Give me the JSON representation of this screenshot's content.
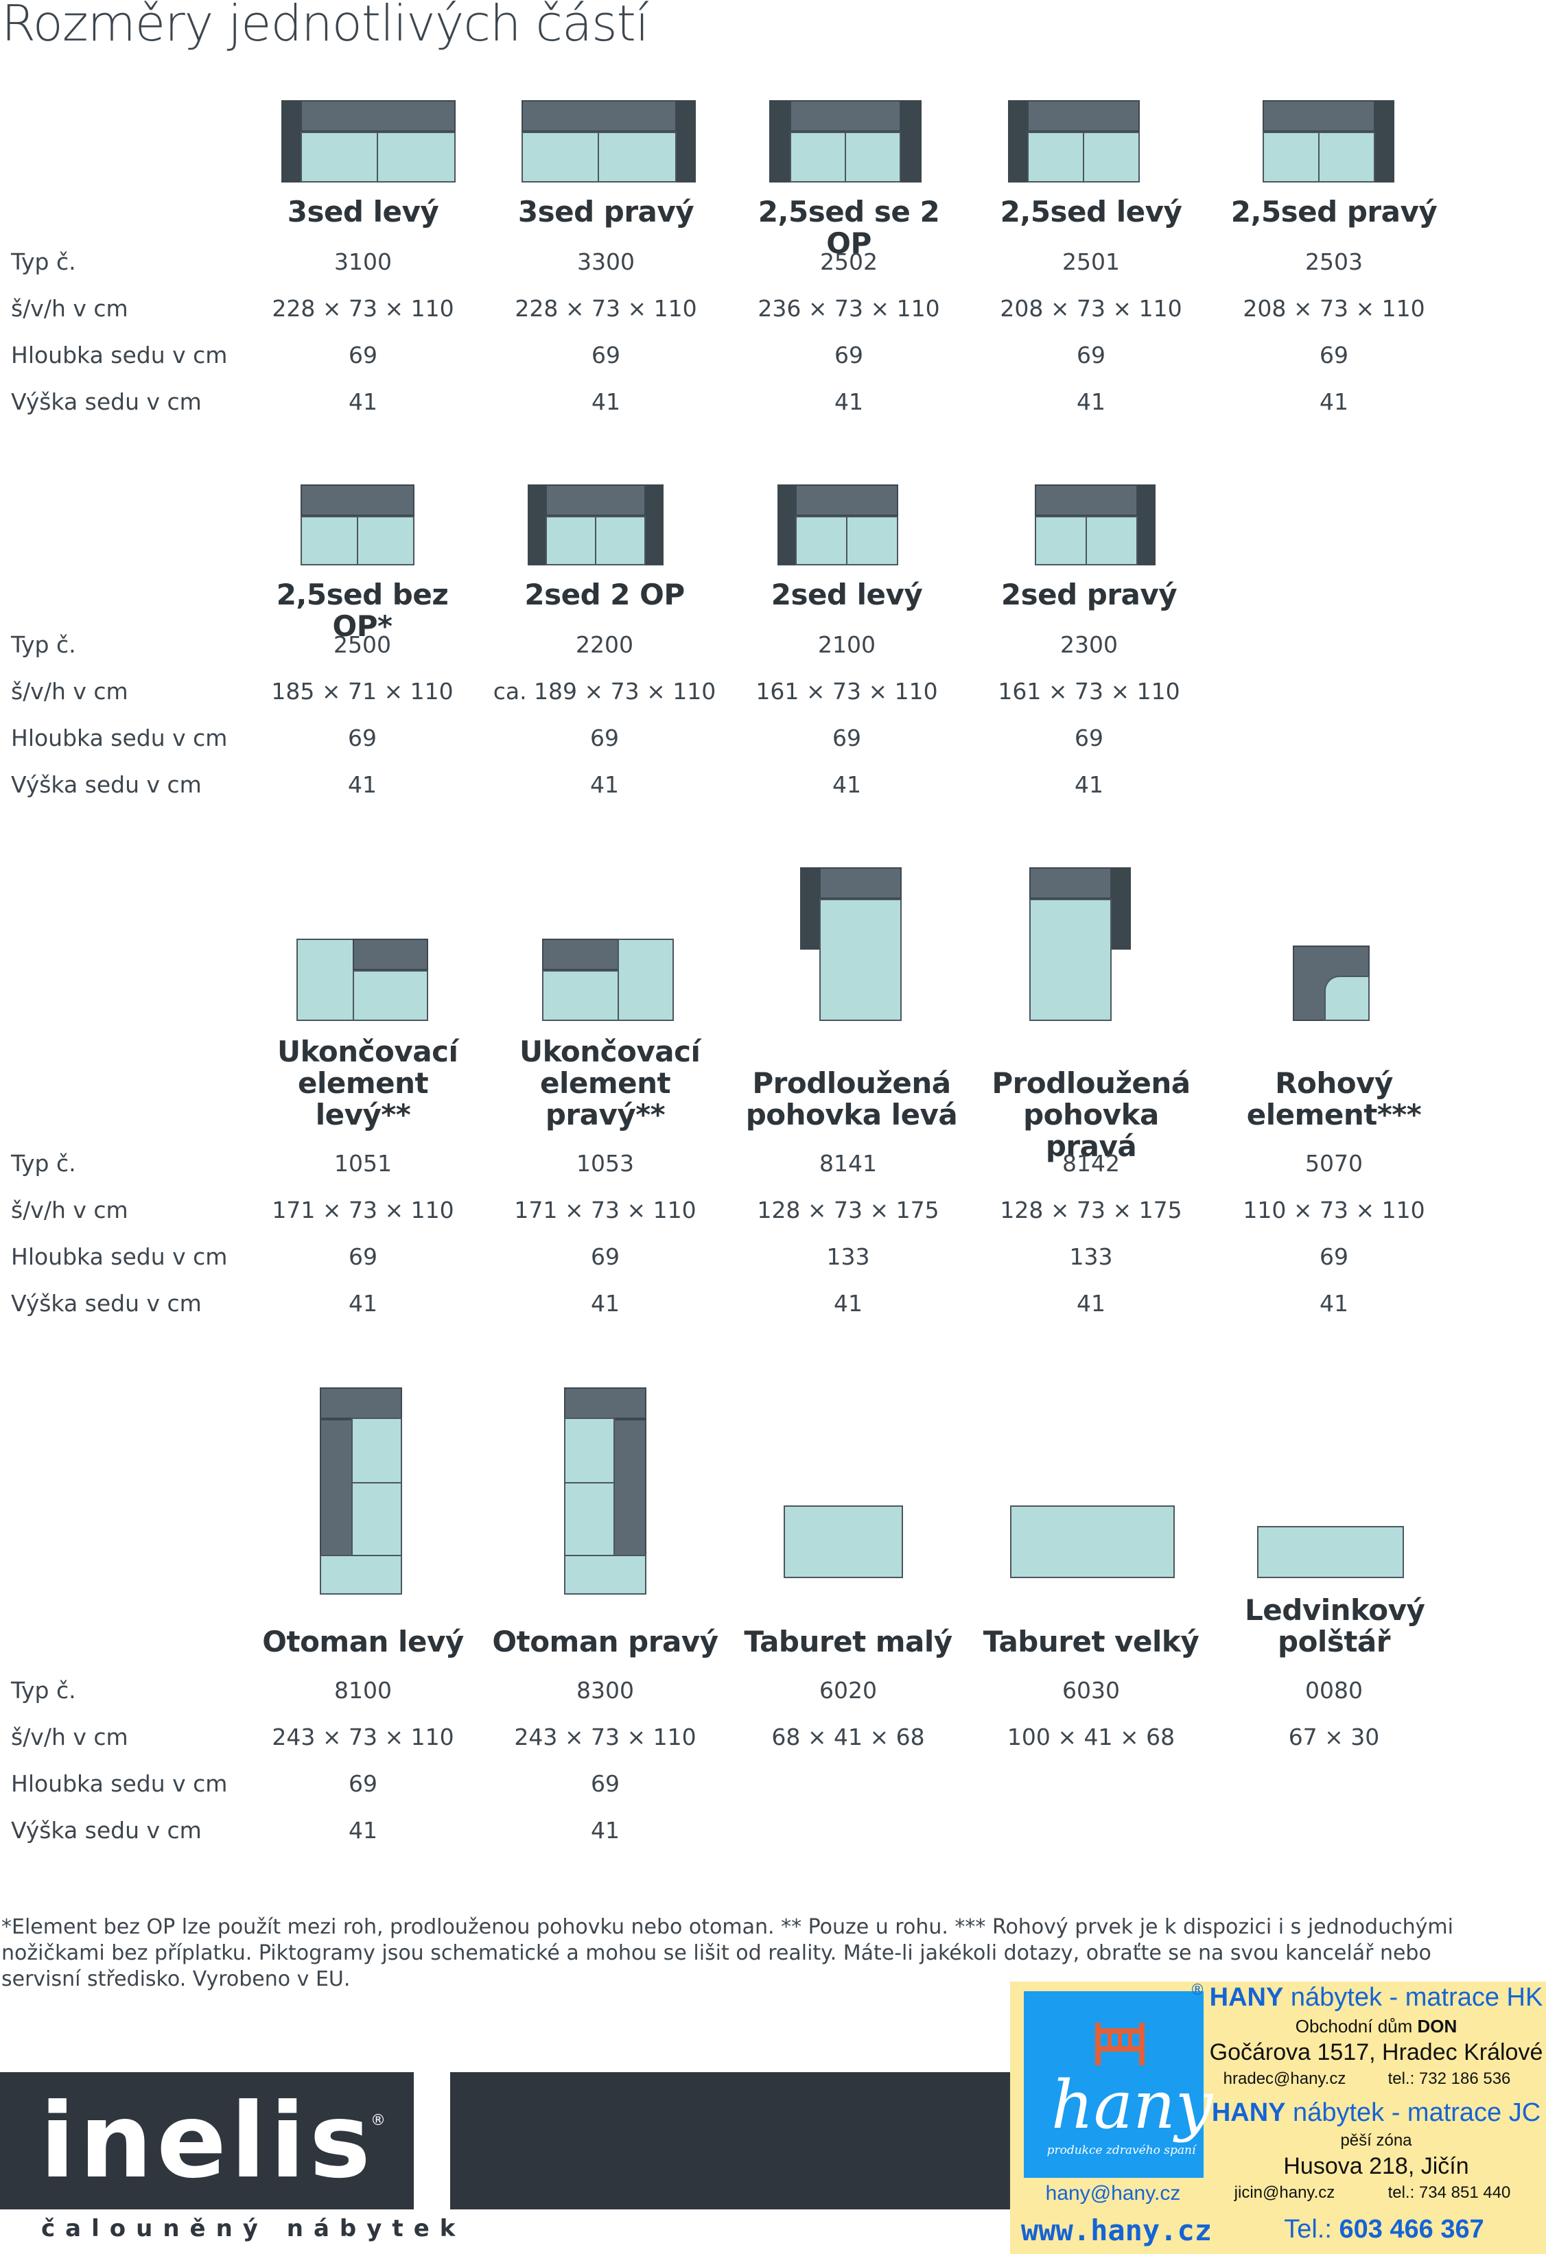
{
  "title": "Rozměry jednotlivých částí",
  "row_labels": [
    "Typ č.",
    "š/v/h v cm",
    "Hloubka sedu v cm",
    "Výška sedu v cm"
  ],
  "sections": [
    {
      "items": [
        {
          "name": "3sed levý",
          "typ": "3100",
          "rozmery": "228 × 73 × 110",
          "hloubka": "69",
          "vyska": "41"
        },
        {
          "name": "3sed pravý",
          "typ": "3300",
          "rozmery": "228 × 73 × 110",
          "hloubka": "69",
          "vyska": "41"
        },
        {
          "name": "2,5sed se 2 OP",
          "typ": "2502",
          "rozmery": "236 × 73 × 110",
          "hloubka": "69",
          "vyska": "41"
        },
        {
          "name": "2,5sed levý",
          "typ": "2501",
          "rozmery": "208 × 73 × 110",
          "hloubka": "69",
          "vyska": "41"
        },
        {
          "name": "2,5sed pravý",
          "typ": "2503",
          "rozmery": "208 × 73 × 110",
          "hloubka": "69",
          "vyska": "41"
        }
      ]
    },
    {
      "items": [
        {
          "name": "2,5sed bez OP*",
          "typ": "2500",
          "rozmery": "185 × 71 × 110",
          "hloubka": "69",
          "vyska": "41"
        },
        {
          "name": "2sed 2 OP",
          "typ": "2200",
          "rozmery": "ca. 189 × 73 × 110",
          "hloubka": "69",
          "vyska": "41"
        },
        {
          "name": "2sed levý",
          "typ": "2100",
          "rozmery": "161 × 73 × 110",
          "hloubka": "69",
          "vyska": "41"
        },
        {
          "name": "2sed pravý",
          "typ": "2300",
          "rozmery": "161 × 73 × 110",
          "hloubka": "69",
          "vyska": "41"
        }
      ]
    },
    {
      "items": [
        {
          "name": "Ukončovací element levý**",
          "typ": "1051",
          "rozmery": "171 × 73 × 110",
          "hloubka": "69",
          "vyska": "41"
        },
        {
          "name": "Ukončovací element pravý**",
          "typ": "1053",
          "rozmery": "171 × 73 × 110",
          "hloubka": "69",
          "vyska": "41"
        },
        {
          "name": "Prodloužená pohovka levá",
          "typ": "8141",
          "rozmery": "128 × 73 × 175",
          "hloubka": "133",
          "vyska": "41"
        },
        {
          "name": "Prodloužená pohovka pravá",
          "typ": "8142",
          "rozmery": "128 × 73 × 175",
          "hloubka": "133",
          "vyska": "41"
        },
        {
          "name": "Rohový element***",
          "typ": "5070",
          "rozmery": "110 × 73 × 110",
          "hloubka": "69",
          "vyska": "41"
        }
      ]
    },
    {
      "items": [
        {
          "name": "Otoman levý",
          "typ": "8100",
          "rozmery": "243 × 73 × 110",
          "hloubka": "69",
          "vyska": "41"
        },
        {
          "name": "Otoman pravý",
          "typ": "8300",
          "rozmery": "243 × 73 × 110",
          "hloubka": "69",
          "vyska": "41"
        },
        {
          "name": "Taburet malý",
          "typ": "6020",
          "rozmery": "68 × 41 × 68",
          "hloubka": "",
          "vyska": ""
        },
        {
          "name": "Taburet velký",
          "typ": "6030",
          "rozmery": "100 × 41 × 68",
          "hloubka": "",
          "vyska": ""
        },
        {
          "name": "Ledvinkový polštář",
          "typ": "0080",
          "rozmery": "67 × 30",
          "hloubka": "",
          "vyska": ""
        }
      ]
    }
  ],
  "footnote": "*Element bez OP lze použít mezi roh, prodlouženou pohovku nebo otoman. ** Pouze u rohu. *** Rohový prvek je k dispozici i s jednoduchými nožičkami bez příplatku. Piktogramy jsou schematické a mohou se lišit od reality. Máte-li jakékoli dotazy, obraťte se na svou kancelář nebo servisní středisko. Vyrobeno v EU.",
  "brand": {
    "logo": "inelis",
    "reg": "®",
    "tagline": "čalouněný nábytek"
  },
  "dealer": {
    "logo_word": "hany",
    "logo_sub": "produkce zdravého spaní",
    "reg": "®",
    "hk_title_bold": "HANY",
    "hk_title_rest": " nábytek - matrace HK",
    "hk_house": "Obchodní dům ",
    "hk_house_bold": "DON",
    "hk_address": "Gočárova 1517, Hradec Králové",
    "hk_email": "hradec@hany.cz",
    "hk_tel": "tel.: 732 186 536",
    "jc_title_bold": "HANY",
    "jc_title_rest": " nábytek - matrace JC",
    "jc_zone": "pěší zóna",
    "jc_address": "Husova 218, Jičín",
    "jc_email": "jicin@hany.cz",
    "jc_tel": "tel.: 734 851 440",
    "email": "hany@hany.cz",
    "web": "www.hany.cz",
    "phone_label": "Tel.: ",
    "phone": "603 466 367"
  }
}
